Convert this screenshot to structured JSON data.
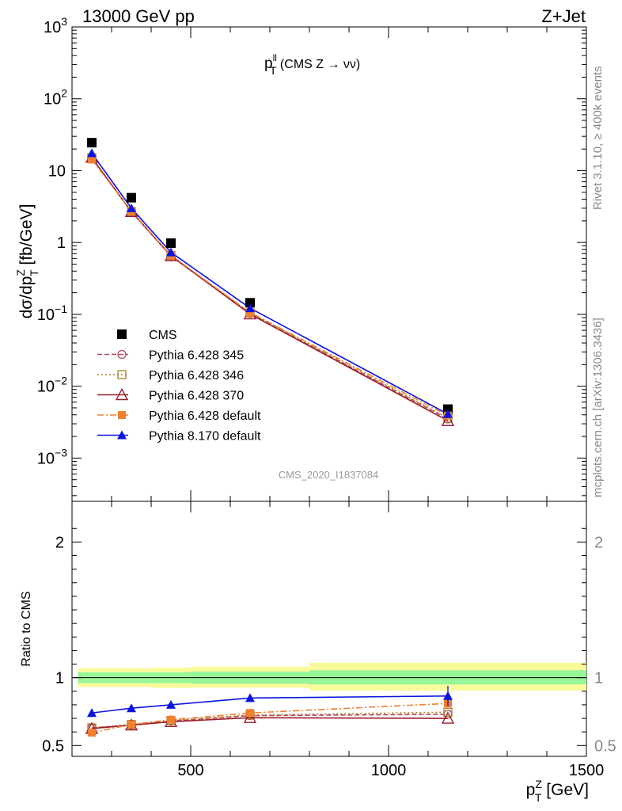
{
  "header": {
    "energy_label": "13000 GeV pp",
    "process_label": "Z+Jet"
  },
  "plot_title": {
    "main": "p",
    "sup": "ll",
    "sub": "T",
    "rest": " (CMS Z → νν)"
  },
  "analysis_id": "CMS_2020_I1837084",
  "side_labels": {
    "rivet": "Rivet 3.1.10, ≥ 400k events",
    "mcplots": "mcplots.cern.ch [arXiv:1306.3436]"
  },
  "axes": {
    "ylabel_main": "dσ/dp",
    "ylabel_main_sup": "Z",
    "ylabel_main_sub": "T",
    "ylabel_main_unit": " [fb/GeV]",
    "ylabel_ratio": "Ratio to CMS",
    "xlabel": "p",
    "xlabel_sup": "Z",
    "xlabel_sub": "T",
    "xlabel_unit": " [GeV]"
  },
  "colors": {
    "CMS": "#000000",
    "Pythia 6.428 345": "#b0485a",
    "Pythia 6.428 346": "#b07d28",
    "Pythia 6.428 370": "#9a1f2c",
    "Pythia 6.428 default": "#f08030",
    "Pythia 8.170 default": "#0a14e0",
    "band_inner": "#98f598",
    "band_outer": "#fafa9a"
  },
  "chart_data": [
    {
      "type": "line",
      "panel": "main",
      "yscale": "log",
      "xlim": [
        200,
        1500
      ],
      "ylim": [
        0.00025,
        1000
      ],
      "y_ticks": [
        "10^-3",
        "10^-2",
        "10^-1",
        "1",
        "10",
        "10^2",
        "10^3"
      ],
      "x": [
        250,
        350,
        450,
        650,
        1150
      ],
      "series": [
        {
          "name": "CMS",
          "marker": "square",
          "values": [
            24.5,
            4.2,
            0.98,
            0.145,
            0.0048
          ]
        },
        {
          "name": "Pythia 6.428 345",
          "marker": "circle-open",
          "line": "dashed",
          "values": [
            15.0,
            2.7,
            0.65,
            0.103,
            0.0035
          ]
        },
        {
          "name": "Pythia 6.428 346",
          "marker": "square-open",
          "line": "dotted",
          "values": [
            15.1,
            2.7,
            0.66,
            0.105,
            0.0036
          ]
        },
        {
          "name": "Pythia 6.428 370",
          "marker": "triangle-open",
          "line": "solid",
          "values": [
            15.2,
            2.68,
            0.65,
            0.101,
            0.0033
          ]
        },
        {
          "name": "Pythia 6.428 default",
          "marker": "square-small",
          "line": "dashdot",
          "values": [
            14.3,
            2.72,
            0.66,
            0.106,
            0.0039
          ]
        },
        {
          "name": "Pythia 8.170 default",
          "marker": "triangle",
          "line": "solid",
          "values": [
            17.5,
            3.0,
            0.73,
            0.122,
            0.0041
          ]
        }
      ]
    },
    {
      "type": "line",
      "panel": "ratio",
      "xlim": [
        200,
        1500
      ],
      "ylim": [
        0.42,
        2.3
      ],
      "y_ticks": [
        0.5,
        1,
        2
      ],
      "x_ticks": [
        500,
        1000,
        1500
      ],
      "x": [
        250,
        350,
        450,
        650,
        1150
      ],
      "band_bins": [
        [
          215,
          300
        ],
        [
          300,
          400
        ],
        [
          400,
          500
        ],
        [
          500,
          800
        ],
        [
          800,
          1500
        ]
      ],
      "band_inner": [
        [
          0.96,
          1.04
        ],
        [
          0.96,
          1.04
        ],
        [
          0.96,
          1.04
        ],
        [
          0.955,
          1.045
        ],
        [
          0.95,
          1.055
        ]
      ],
      "band_outer": [
        [
          0.93,
          1.07
        ],
        [
          0.93,
          1.07
        ],
        [
          0.925,
          1.075
        ],
        [
          0.925,
          1.08
        ],
        [
          0.905,
          1.11
        ]
      ],
      "series": [
        {
          "name": "Pythia 6.428 345",
          "values": [
            0.63,
            0.65,
            0.68,
            0.72,
            0.73
          ]
        },
        {
          "name": "Pythia 6.428 346",
          "values": [
            0.63,
            0.655,
            0.685,
            0.725,
            0.745
          ]
        },
        {
          "name": "Pythia 6.428 370",
          "values": [
            0.625,
            0.65,
            0.675,
            0.705,
            0.7
          ]
        },
        {
          "name": "Pythia 6.428 default",
          "values": [
            0.595,
            0.655,
            0.69,
            0.74,
            0.81
          ]
        },
        {
          "name": "Pythia 8.170 default",
          "values": [
            0.74,
            0.775,
            0.8,
            0.85,
            0.865
          ],
          "errors": [
            0.005,
            0.005,
            0.007,
            0.02,
            0.075
          ]
        }
      ]
    }
  ]
}
